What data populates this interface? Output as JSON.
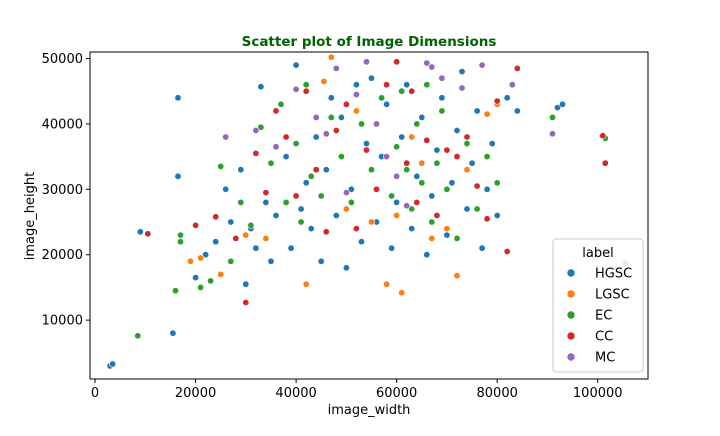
{
  "chart_data": {
    "type": "scatter",
    "title": "Scatter plot of Image Dimensions",
    "title_color": "#006400",
    "xlabel": "image_width",
    "ylabel": "image_height",
    "xlim": [
      -1000,
      110000
    ],
    "ylim": [
      1000,
      51000
    ],
    "xticks": [
      0,
      20000,
      40000,
      60000,
      80000,
      100000
    ],
    "xtick_labels": [
      "0",
      "20000",
      "40000",
      "60000",
      "80000",
      "100000"
    ],
    "yticks": [
      10000,
      20000,
      30000,
      40000,
      50000
    ],
    "ytick_labels": [
      "10000",
      "20000",
      "30000",
      "40000",
      "50000"
    ],
    "grid": false,
    "legend": {
      "title": "label",
      "position": "lower right"
    },
    "series": [
      {
        "name": "HGSC",
        "color": "#1f77b4",
        "points": [
          [
            3000,
            3000
          ],
          [
            3500,
            3300
          ],
          [
            9000,
            23500
          ],
          [
            15500,
            8000
          ],
          [
            16500,
            44000
          ],
          [
            16500,
            32000
          ],
          [
            20000,
            16500
          ],
          [
            22000,
            20000
          ],
          [
            24000,
            22000
          ],
          [
            26000,
            30000
          ],
          [
            27000,
            25000
          ],
          [
            29000,
            33000
          ],
          [
            30000,
            15500
          ],
          [
            31000,
            24000
          ],
          [
            32000,
            21000
          ],
          [
            33000,
            45700
          ],
          [
            34000,
            28000
          ],
          [
            35000,
            19000
          ],
          [
            36000,
            26000
          ],
          [
            38000,
            35000
          ],
          [
            39000,
            21000
          ],
          [
            40000,
            49000
          ],
          [
            41000,
            27000
          ],
          [
            42000,
            31000
          ],
          [
            43000,
            24000
          ],
          [
            44000,
            38000
          ],
          [
            45000,
            19000
          ],
          [
            46000,
            33000
          ],
          [
            47000,
            44000
          ],
          [
            48000,
            26000
          ],
          [
            49000,
            41000
          ],
          [
            50000,
            18000
          ],
          [
            51000,
            30000
          ],
          [
            52000,
            46000
          ],
          [
            53000,
            22000
          ],
          [
            54000,
            37000
          ],
          [
            55000,
            47000
          ],
          [
            56000,
            25000
          ],
          [
            57000,
            35000
          ],
          [
            58000,
            43000
          ],
          [
            59000,
            21000
          ],
          [
            60000,
            28000
          ],
          [
            61000,
            38000
          ],
          [
            62000,
            46000
          ],
          [
            63000,
            24000
          ],
          [
            64000,
            32000
          ],
          [
            65000,
            41000
          ],
          [
            66000,
            20000
          ],
          [
            67000,
            29000
          ],
          [
            68000,
            36000
          ],
          [
            69000,
            44000
          ],
          [
            70000,
            23000
          ],
          [
            71000,
            31000
          ],
          [
            72000,
            39000
          ],
          [
            73000,
            48000
          ],
          [
            74000,
            27000
          ],
          [
            75000,
            34000
          ],
          [
            76000,
            42000
          ],
          [
            77000,
            21000
          ],
          [
            78000,
            30000
          ],
          [
            79000,
            37000
          ],
          [
            80000,
            26000
          ],
          [
            82000,
            44000
          ],
          [
            84000,
            42000
          ],
          [
            92000,
            42500
          ],
          [
            93000,
            43000
          ],
          [
            105500,
            18700
          ]
        ]
      },
      {
        "name": "LGSC",
        "color": "#ff7f0e",
        "points": [
          [
            19000,
            19000
          ],
          [
            21000,
            19500
          ],
          [
            25000,
            17000
          ],
          [
            30000,
            23000
          ],
          [
            34000,
            22500
          ],
          [
            42000,
            15500
          ],
          [
            44000,
            33000
          ],
          [
            45500,
            46500
          ],
          [
            47000,
            50200
          ],
          [
            50000,
            27000
          ],
          [
            52000,
            42000
          ],
          [
            55000,
            25000
          ],
          [
            58000,
            15500
          ],
          [
            60000,
            26000
          ],
          [
            61000,
            14200
          ],
          [
            63000,
            38000
          ],
          [
            65000,
            34000
          ],
          [
            67000,
            22500
          ],
          [
            70000,
            24000
          ],
          [
            72000,
            16800
          ],
          [
            74000,
            33000
          ],
          [
            78000,
            41500
          ],
          [
            80000,
            43000
          ]
        ]
      },
      {
        "name": "EC",
        "color": "#2ca02c",
        "points": [
          [
            8500,
            7600
          ],
          [
            16000,
            14500
          ],
          [
            17000,
            23000
          ],
          [
            17000,
            22000
          ],
          [
            21000,
            15000
          ],
          [
            23000,
            16000
          ],
          [
            25000,
            33500
          ],
          [
            27000,
            19000
          ],
          [
            29000,
            28000
          ],
          [
            31000,
            24500
          ],
          [
            33000,
            39500
          ],
          [
            35000,
            34000
          ],
          [
            37000,
            43000
          ],
          [
            38000,
            28000
          ],
          [
            40000,
            37000
          ],
          [
            41000,
            25000
          ],
          [
            42000,
            46000
          ],
          [
            43000,
            32000
          ],
          [
            45000,
            29000
          ],
          [
            47000,
            41000
          ],
          [
            49000,
            35000
          ],
          [
            51000,
            28000
          ],
          [
            53000,
            40000
          ],
          [
            55000,
            33000
          ],
          [
            57000,
            44000
          ],
          [
            59000,
            29000
          ],
          [
            60000,
            36500
          ],
          [
            61000,
            45000
          ],
          [
            62000,
            33000
          ],
          [
            63000,
            27000
          ],
          [
            64000,
            40000
          ],
          [
            65000,
            31000
          ],
          [
            66000,
            46000
          ],
          [
            67000,
            25000
          ],
          [
            68000,
            34000
          ],
          [
            69000,
            42000
          ],
          [
            70000,
            30000
          ],
          [
            72000,
            22500
          ],
          [
            74000,
            37000
          ],
          [
            76000,
            27000
          ],
          [
            78000,
            35000
          ],
          [
            80000,
            31000
          ],
          [
            91000,
            41000
          ],
          [
            101500,
            37800
          ]
        ]
      },
      {
        "name": "CC",
        "color": "#d62728",
        "points": [
          [
            10500,
            23200
          ],
          [
            20000,
            24500
          ],
          [
            24000,
            25800
          ],
          [
            28000,
            22500
          ],
          [
            30000,
            12700
          ],
          [
            32000,
            35500
          ],
          [
            34000,
            29500
          ],
          [
            36000,
            42000
          ],
          [
            38000,
            38000
          ],
          [
            40000,
            29000
          ],
          [
            42000,
            45000
          ],
          [
            44000,
            33000
          ],
          [
            46000,
            23500
          ],
          [
            48000,
            39000
          ],
          [
            50000,
            43000
          ],
          [
            52000,
            24000
          ],
          [
            54000,
            36000
          ],
          [
            56000,
            30000
          ],
          [
            58000,
            46000
          ],
          [
            60000,
            49500
          ],
          [
            62000,
            34000
          ],
          [
            63000,
            45000
          ],
          [
            64000,
            28000
          ],
          [
            66000,
            37500
          ],
          [
            68000,
            26000
          ],
          [
            70000,
            36000
          ],
          [
            72000,
            35000
          ],
          [
            74000,
            38000
          ],
          [
            76000,
            30500
          ],
          [
            78000,
            25500
          ],
          [
            80000,
            43500
          ],
          [
            82000,
            20500
          ],
          [
            84000,
            48500
          ],
          [
            101000,
            38200
          ],
          [
            101500,
            34000
          ]
        ]
      },
      {
        "name": "MC",
        "color": "#9467bd",
        "points": [
          [
            26000,
            38000
          ],
          [
            32000,
            39000
          ],
          [
            36000,
            36500
          ],
          [
            40000,
            45300
          ],
          [
            44000,
            41000
          ],
          [
            46000,
            38500
          ],
          [
            48000,
            48500
          ],
          [
            50000,
            29500
          ],
          [
            52000,
            44500
          ],
          [
            54000,
            49500
          ],
          [
            56000,
            40000
          ],
          [
            58000,
            35000
          ],
          [
            60000,
            32000
          ],
          [
            62000,
            27500
          ],
          [
            66000,
            49300
          ],
          [
            67000,
            48700
          ],
          [
            69000,
            47000
          ],
          [
            73000,
            45500
          ],
          [
            77000,
            49000
          ],
          [
            83000,
            46000
          ],
          [
            91000,
            38500
          ]
        ]
      }
    ]
  }
}
